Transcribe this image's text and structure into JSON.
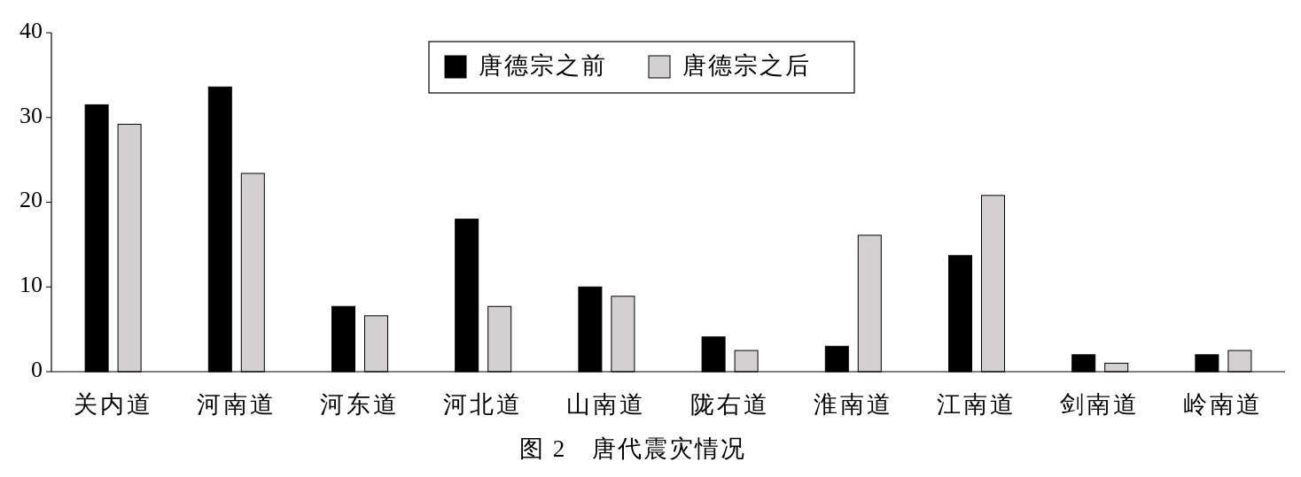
{
  "chart_data": {
    "type": "bar",
    "title": "图 2　唐代震灾情况",
    "categories": [
      "关内道",
      "河南道",
      "河东道",
      "河北道",
      "山南道",
      "陇右道",
      "淮南道",
      "江南道",
      "剑南道",
      "岭南道"
    ],
    "series": [
      {
        "name": "唐德宗之前",
        "color": "#000000",
        "values": [
          31.5,
          33.6,
          7.7,
          18.0,
          10.0,
          4.1,
          3.0,
          13.7,
          2.0,
          2.0
        ]
      },
      {
        "name": "唐德宗之后",
        "color": "#d4d0d2",
        "values": [
          29.2,
          23.4,
          6.6,
          7.7,
          8.9,
          2.5,
          16.1,
          20.8,
          1.0,
          2.5
        ]
      }
    ],
    "ylim": [
      0,
      40
    ],
    "yticks": [
      0,
      10,
      20,
      30,
      40
    ],
    "grid": false,
    "legend": "top"
  }
}
